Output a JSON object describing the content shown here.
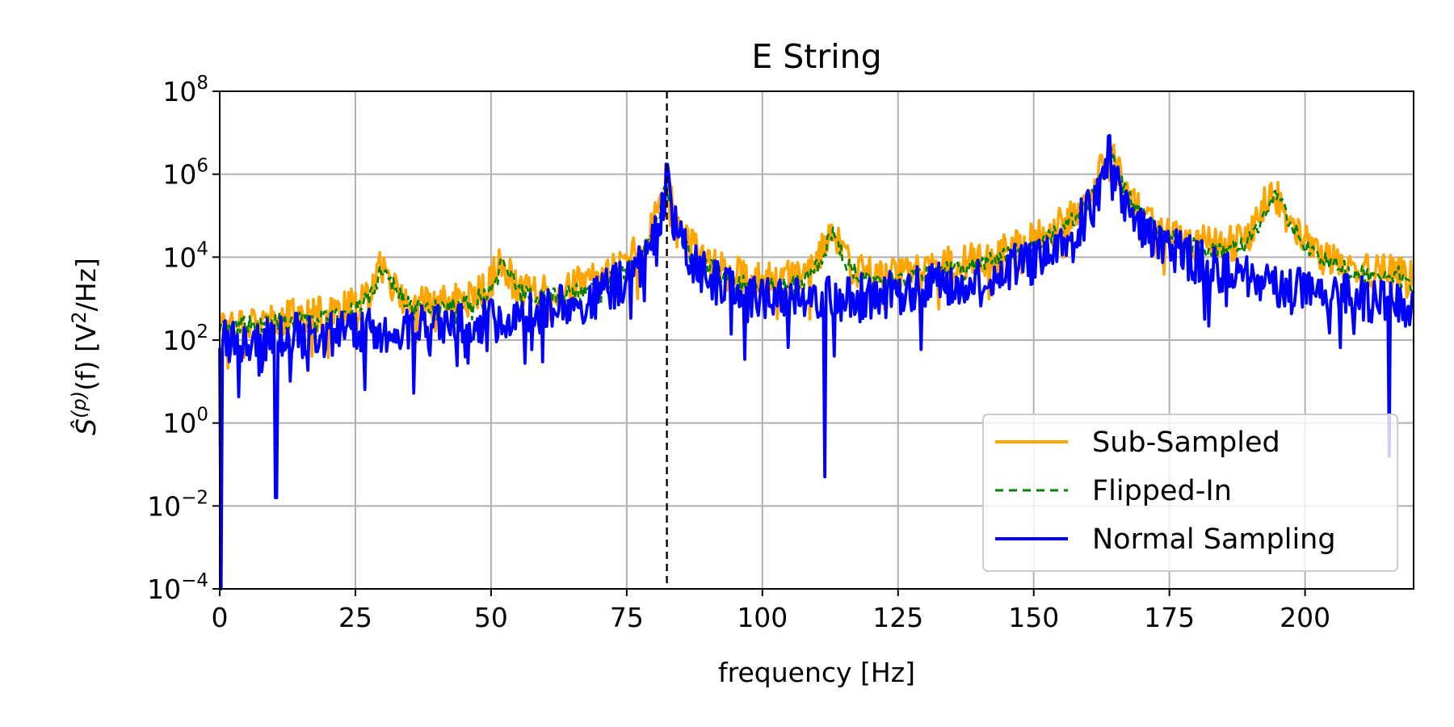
{
  "chart_data": {
    "type": "line",
    "title": "E String",
    "xlabel": "frequency [Hz]",
    "ylabel": "Ŝ(p)(f) [V2/Hz]",
    "ylabel_parts": {
      "main": "Ŝ",
      "sup": "(p)",
      "mid": "(f) [V",
      "sup2": "2",
      "end": "/Hz]"
    },
    "xlim": [
      0,
      220
    ],
    "ylim_log10": [
      -4,
      8
    ],
    "y_scale": "log",
    "grid": true,
    "legend_position": "lower-right",
    "x_ticks": [
      0,
      25,
      50,
      75,
      100,
      125,
      150,
      175,
      200
    ],
    "x_tick_labels": [
      "0",
      "25",
      "50",
      "75",
      "100",
      "125",
      "150",
      "175",
      "200"
    ],
    "y_ticks_log10": [
      -4,
      -2,
      0,
      2,
      4,
      6,
      8
    ],
    "y_tick_labels": [
      {
        "base": "10",
        "exp": "−4"
      },
      {
        "base": "10",
        "exp": "−2"
      },
      {
        "base": "10",
        "exp": "0"
      },
      {
        "base": "10",
        "exp": "2"
      },
      {
        "base": "10",
        "exp": "4"
      },
      {
        "base": "10",
        "exp": "6"
      },
      {
        "base": "10",
        "exp": "8"
      }
    ],
    "reference_line": {
      "x": 82.4,
      "style": "dashed",
      "color": "#000000"
    },
    "series": [
      {
        "name": "Sub-Sampled",
        "color": "#ffa500",
        "style": "solid",
        "baseline_log10": [
          [
            0,
            0.7
          ],
          [
            12,
            1.1
          ],
          [
            22,
            1.4
          ],
          [
            35,
            1.2
          ],
          [
            45,
            1.4
          ],
          [
            60,
            1.7
          ],
          [
            72,
            2.0
          ],
          [
            80,
            2.5
          ],
          [
            88,
            1.3
          ],
          [
            95,
            0.8
          ],
          [
            105,
            1.3
          ],
          [
            115,
            2.3
          ],
          [
            125,
            1.8
          ],
          [
            140,
            1.4
          ],
          [
            150,
            1.1
          ],
          [
            160,
            2.6
          ],
          [
            175,
            2.6
          ],
          [
            185,
            2.8
          ],
          [
            198,
            1.8
          ],
          [
            210,
            1.3
          ],
          [
            220,
            1.9
          ]
        ],
        "peaks": [
          [
            30,
            3.7,
            1.2
          ],
          [
            52,
            3.8,
            1.3
          ],
          [
            82.4,
            5.9,
            0.7
          ],
          [
            89,
            3.0,
            1.0
          ],
          [
            112.5,
            4.7,
            1.0
          ],
          [
            120,
            2.3,
            0.6
          ],
          [
            134,
            3.0,
            0.6
          ],
          [
            145,
            2.1,
            0.7
          ],
          [
            164,
            6.6,
            1.1
          ],
          [
            194,
            5.6,
            1.3
          ],
          [
            216,
            3.3,
            1.0
          ]
        ],
        "noise": 0.45
      },
      {
        "name": "Flipped-In",
        "color": "#008000",
        "style": "dashed",
        "baseline_log10": [
          [
            0,
            0.8
          ],
          [
            12,
            1.3
          ],
          [
            22,
            1.5
          ],
          [
            35,
            1.3
          ],
          [
            45,
            1.5
          ],
          [
            60,
            1.7
          ],
          [
            72,
            2.1
          ],
          [
            80,
            2.5
          ],
          [
            88,
            1.8
          ],
          [
            95,
            1.2
          ],
          [
            105,
            1.4
          ],
          [
            115,
            2.3
          ],
          [
            125,
            1.8
          ],
          [
            140,
            1.4
          ],
          [
            150,
            1.2
          ],
          [
            160,
            2.6
          ],
          [
            175,
            2.6
          ],
          [
            185,
            2.8
          ],
          [
            198,
            1.9
          ],
          [
            210,
            1.5
          ],
          [
            220,
            2.0
          ]
        ],
        "peaks": [
          [
            30.3,
            3.7,
            1.2
          ],
          [
            52.3,
            3.8,
            1.3
          ],
          [
            82.4,
            5.7,
            0.7
          ],
          [
            90.5,
            3.1,
            1.0
          ],
          [
            113,
            4.6,
            1.0
          ],
          [
            120,
            2.2,
            0.6
          ],
          [
            134.3,
            3.0,
            0.6
          ],
          [
            142,
            2.2,
            0.7
          ],
          [
            164,
            6.5,
            1.1
          ],
          [
            194.6,
            5.5,
            1.3
          ],
          [
            217,
            3.2,
            1.0
          ]
        ],
        "noise": 0.2
      },
      {
        "name": "Normal Sampling",
        "color": "#0000ff",
        "style": "solid",
        "baseline_log10": [
          [
            0,
            0.3
          ],
          [
            12,
            0.6
          ],
          [
            22,
            0.8
          ],
          [
            35,
            0.9
          ],
          [
            45,
            1.0
          ],
          [
            60,
            1.2
          ],
          [
            70,
            1.5
          ],
          [
            78,
            2.0
          ],
          [
            82,
            2.5
          ],
          [
            88,
            1.9
          ],
          [
            95,
            1.3
          ],
          [
            105,
            1.0
          ],
          [
            115,
            1.1
          ],
          [
            125,
            1.2
          ],
          [
            140,
            1.2
          ],
          [
            150,
            1.1
          ],
          [
            160,
            2.5
          ],
          [
            175,
            2.2
          ],
          [
            185,
            1.9
          ],
          [
            198,
            1.8
          ],
          [
            210,
            1.3
          ],
          [
            220,
            1.7
          ]
        ],
        "peaks": [
          [
            82.4,
            5.8,
            0.5
          ],
          [
            164,
            6.5,
            0.8
          ]
        ],
        "noise": 0.55,
        "dips": [
          [
            0.3,
            -4.0
          ],
          [
            10.3,
            -1.8
          ],
          [
            111.5,
            -1.3
          ],
          [
            215.5,
            -0.8
          ]
        ],
        "spikes": [
          [
            1.5,
            2.2
          ],
          [
            22.3,
            2.3
          ],
          [
            33.5,
            1.8
          ],
          [
            145.5,
            2.9
          ]
        ]
      }
    ]
  }
}
